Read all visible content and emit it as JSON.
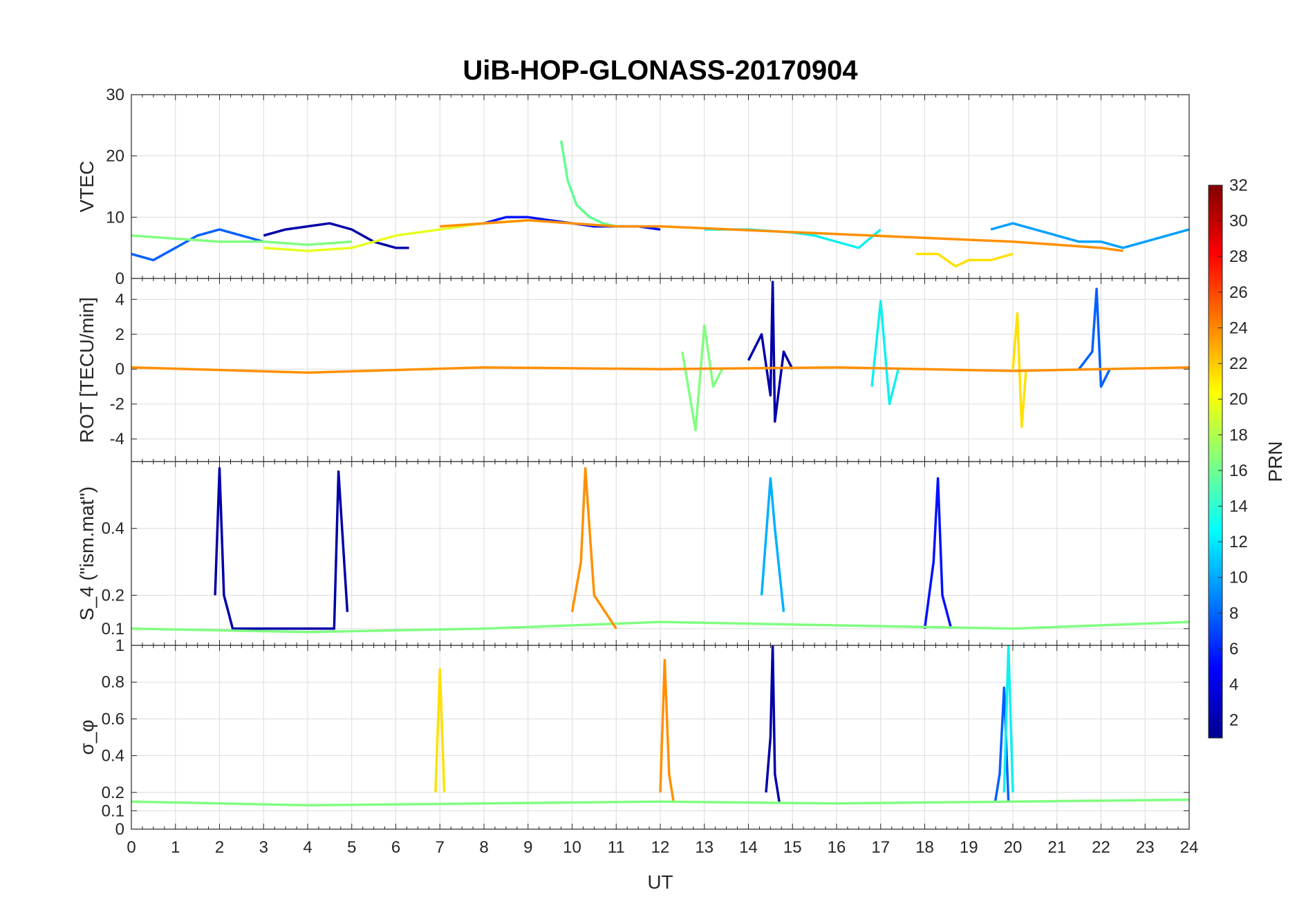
{
  "figure": {
    "title": "UiB-HOP-GLONASS-20170904",
    "xlabel": "UT",
    "x_ticks": [
      "0",
      "1",
      "2",
      "3",
      "4",
      "5",
      "6",
      "7",
      "8",
      "9",
      "10",
      "11",
      "12",
      "13",
      "14",
      "15",
      "16",
      "17",
      "18",
      "19",
      "20",
      "21",
      "22",
      "23",
      "24"
    ]
  },
  "colorbar": {
    "label": "PRN",
    "ticks": [
      "2",
      "4",
      "6",
      "8",
      "10",
      "12",
      "14",
      "16",
      "18",
      "20",
      "22",
      "24",
      "26",
      "28",
      "30",
      "32"
    ],
    "colormap": "jet"
  },
  "chart_data": [
    {
      "type": "line",
      "ylabel": "VTEC",
      "xlim": [
        0,
        24
      ],
      "ylim": [
        0,
        30
      ],
      "y_ticks": [
        "0",
        "10",
        "20",
        "30"
      ],
      "grid": true,
      "series": [
        {
          "prn": 2,
          "color": "#0000a8",
          "x": [
            3.0,
            3.5,
            4.0,
            4.5,
            5.0,
            5.5,
            6.0,
            6.3
          ],
          "y": [
            7,
            8,
            8.5,
            9,
            8,
            6,
            5,
            5
          ]
        },
        {
          "prn": 4,
          "color": "#0010ff",
          "x": [
            8.0,
            8.5,
            9.0,
            9.5,
            10.0,
            10.5,
            11.0,
            11.5,
            12.0
          ],
          "y": [
            9,
            10,
            10,
            9.5,
            9,
            8.5,
            8.5,
            8.5,
            8
          ]
        },
        {
          "prn": 6,
          "color": "#0060ff",
          "x": [
            0.0,
            0.5,
            1.0,
            1.5,
            2.0,
            2.5,
            3.0
          ],
          "y": [
            4,
            3,
            5,
            7,
            8,
            7,
            6
          ]
        },
        {
          "prn": 8,
          "color": "#00a0ff",
          "x": [
            19.5,
            20.0,
            20.5,
            21.0,
            21.5,
            22.0,
            22.5,
            23.0,
            23.5,
            24.0
          ],
          "y": [
            8,
            9,
            8,
            7,
            6,
            6,
            5,
            6,
            7,
            8
          ]
        },
        {
          "prn": 12,
          "color": "#10f0f0",
          "x": [
            13.0,
            14.0,
            15.0,
            15.5,
            16.0,
            16.5,
            17.0
          ],
          "y": [
            8,
            8,
            7.5,
            7,
            6,
            5,
            8
          ]
        },
        {
          "prn": 15,
          "color": "#60ff90",
          "x": [
            9.75,
            9.9,
            10.1,
            10.4,
            10.7,
            11.0
          ],
          "y": [
            22.5,
            16,
            12,
            10,
            9,
            8.5
          ]
        },
        {
          "prn": 16,
          "color": "#80ff80",
          "x": [
            0.0,
            1.0,
            2.0,
            3.0,
            4.0,
            5.0
          ],
          "y": [
            7,
            6.5,
            6,
            6,
            5.5,
            6
          ]
        },
        {
          "prn": 19,
          "color": "#e8ff20",
          "x": [
            3.0,
            4.0,
            5.0,
            6.0,
            7.0,
            8.0,
            9.0
          ],
          "y": [
            5,
            4.5,
            5,
            7,
            8,
            9,
            9.5
          ]
        },
        {
          "prn": 20,
          "color": "#ffe000",
          "x": [
            17.8,
            18.3,
            18.7,
            19.0,
            19.5,
            20.0
          ],
          "y": [
            4,
            4,
            2,
            3,
            3,
            4
          ]
        },
        {
          "prn": 23,
          "color": "#ff9000",
          "x": [
            7.0,
            8.0,
            9.0,
            10.0,
            11.0,
            12.0,
            20.0,
            21.0,
            22.0,
            22.5
          ],
          "y": [
            8.5,
            9,
            9.5,
            9,
            8.5,
            8.5,
            6,
            5.5,
            5,
            4.5
          ]
        }
      ]
    },
    {
      "type": "line",
      "ylabel": "ROT [TECU/min]",
      "xlim": [
        0,
        24
      ],
      "ylim": [
        -5.3,
        5.2
      ],
      "y_ticks": [
        "-4",
        "-2",
        "0",
        "2",
        "4"
      ],
      "grid": true,
      "series": [
        {
          "prn": 2,
          "color": "#0000a8",
          "x": [
            14.0,
            14.3,
            14.5,
            14.55,
            14.6,
            14.8,
            15.0
          ],
          "y": [
            0.5,
            2,
            -1.5,
            5,
            -3,
            1,
            0
          ]
        },
        {
          "prn": 6,
          "color": "#0060ff",
          "x": [
            21.5,
            21.8,
            21.9,
            22.0,
            22.2
          ],
          "y": [
            0,
            1,
            4.6,
            -1,
            0
          ]
        },
        {
          "prn": 12,
          "color": "#10f0f0",
          "x": [
            16.8,
            17.0,
            17.2,
            17.4
          ],
          "y": [
            -1,
            3.9,
            -2,
            0
          ]
        },
        {
          "prn": 16,
          "color": "#80ff80",
          "x": [
            12.5,
            12.8,
            13.0,
            13.2,
            13.4
          ],
          "y": [
            1,
            -3.5,
            2.5,
            -1,
            0
          ]
        },
        {
          "prn": 20,
          "color": "#ffe000",
          "x": [
            20.0,
            20.1,
            20.2,
            20.3
          ],
          "y": [
            0,
            3.2,
            -3.3,
            0
          ]
        },
        {
          "prn": 23,
          "color": "#ff9000",
          "x": [
            0,
            4,
            8,
            12,
            16,
            20,
            24
          ],
          "y": [
            0.1,
            -0.2,
            0.1,
            0,
            0.1,
            -0.1,
            0.1
          ]
        }
      ]
    },
    {
      "type": "line",
      "ylabel": "S_4 (\"ism.mat\")",
      "xlim": [
        0,
        24
      ],
      "ylim": [
        0.05,
        0.6
      ],
      "y_ticks": [
        "0.1",
        "0.2",
        "0.4"
      ],
      "grid": true,
      "series": [
        {
          "prn": 2,
          "color": "#0000a8",
          "x": [
            1.9,
            2.0,
            2.1,
            2.3,
            4.6,
            4.7,
            4.9
          ],
          "y": [
            0.2,
            0.58,
            0.2,
            0.1,
            0.1,
            0.57,
            0.15
          ]
        },
        {
          "prn": 4,
          "color": "#0010ff",
          "x": [
            18.0,
            18.2,
            18.3,
            18.4,
            18.6
          ],
          "y": [
            0.1,
            0.3,
            0.55,
            0.2,
            0.1
          ]
        },
        {
          "prn": 10,
          "color": "#00b0ff",
          "x": [
            14.3,
            14.5,
            14.6,
            14.8
          ],
          "y": [
            0.2,
            0.55,
            0.4,
            0.15
          ]
        },
        {
          "prn": 16,
          "color": "#80ff80",
          "x": [
            0.0,
            4.0,
            8.0,
            12.0,
            16.0,
            20.0,
            24.0
          ],
          "y": [
            0.1,
            0.09,
            0.1,
            0.12,
            0.11,
            0.1,
            0.12
          ]
        },
        {
          "prn": 23,
          "color": "#ff9000",
          "x": [
            10.0,
            10.2,
            10.3,
            10.5,
            11.0
          ],
          "y": [
            0.15,
            0.3,
            0.58,
            0.2,
            0.1
          ]
        }
      ]
    },
    {
      "type": "line",
      "ylabel": "σ_φ",
      "xlim": [
        0,
        24
      ],
      "ylim": [
        0,
        1
      ],
      "y_ticks": [
        "0",
        "0.1",
        "0.2",
        "0.4",
        "0.6",
        "0.8",
        "1"
      ],
      "grid": true,
      "series": [
        {
          "prn": 2,
          "color": "#0000a8",
          "x": [
            14.4,
            14.5,
            14.55,
            14.6,
            14.7
          ],
          "y": [
            0.2,
            0.5,
            1.0,
            0.3,
            0.15
          ]
        },
        {
          "prn": 6,
          "color": "#0060ff",
          "x": [
            19.6,
            19.7,
            19.8,
            19.9
          ],
          "y": [
            0.15,
            0.3,
            0.77,
            0.15
          ]
        },
        {
          "prn": 12,
          "color": "#10f0f0",
          "x": [
            19.8,
            19.9,
            20.0
          ],
          "y": [
            0.2,
            1.0,
            0.2
          ]
        },
        {
          "prn": 20,
          "color": "#ffe000",
          "x": [
            6.9,
            7.0,
            7.1
          ],
          "y": [
            0.2,
            0.87,
            0.2
          ]
        },
        {
          "prn": 23,
          "color": "#ff9000",
          "x": [
            12.0,
            12.1,
            12.2,
            12.3
          ],
          "y": [
            0.2,
            0.92,
            0.3,
            0.15
          ]
        },
        {
          "prn": 16,
          "color": "#80ff80",
          "x": [
            0,
            4,
            8,
            12,
            16,
            20,
            24
          ],
          "y": [
            0.15,
            0.13,
            0.14,
            0.15,
            0.14,
            0.15,
            0.16
          ]
        }
      ]
    }
  ]
}
